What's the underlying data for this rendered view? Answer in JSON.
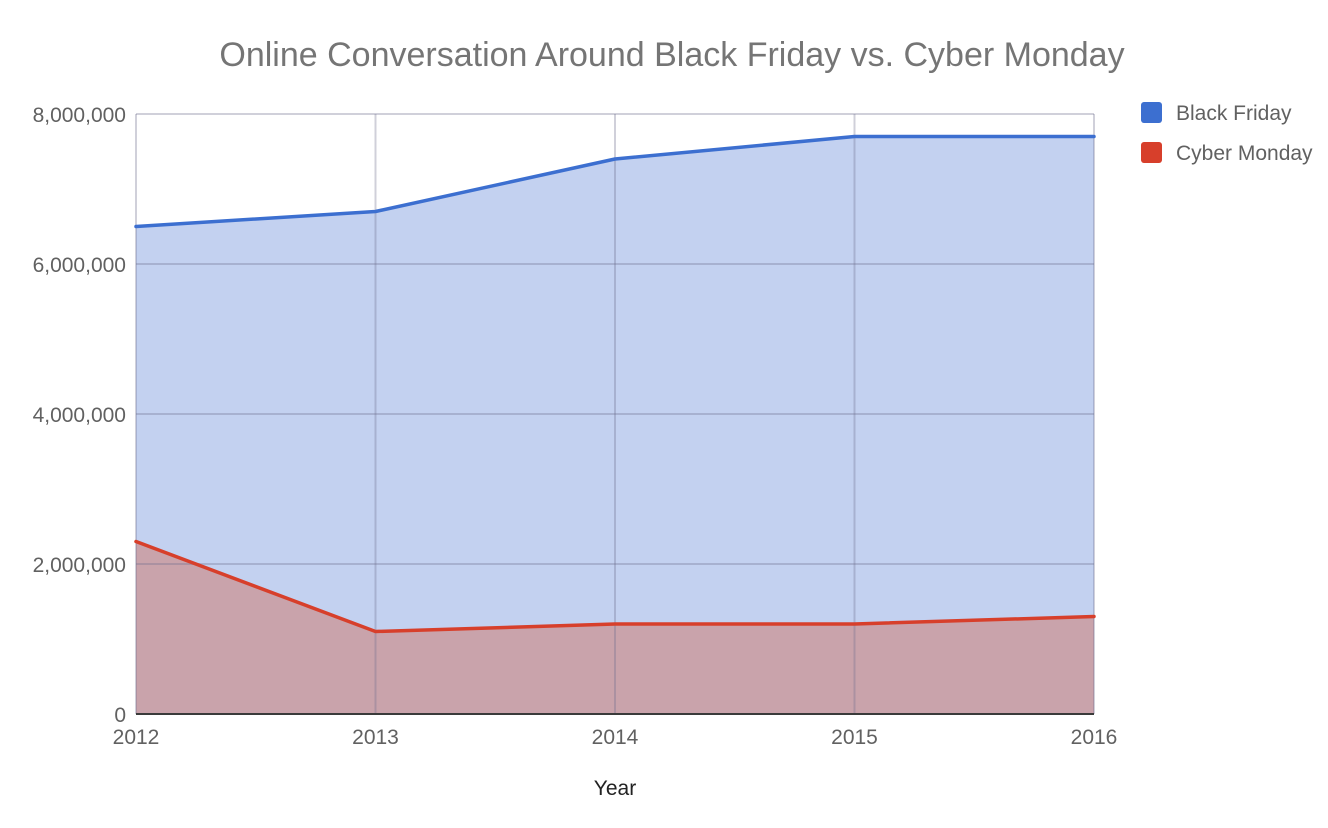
{
  "chart_data": {
    "type": "area",
    "title": "Online Conversation Around Black Friday vs. Cyber Monday",
    "xlabel": "Year",
    "ylabel": "",
    "categories": [
      "2012",
      "2013",
      "2014",
      "2015",
      "2016"
    ],
    "ylim": [
      0,
      8000000
    ],
    "y_ticks": [
      {
        "value": 0,
        "label": "0"
      },
      {
        "value": 2000000,
        "label": "2,000,000"
      },
      {
        "value": 4000000,
        "label": "4,000,000"
      },
      {
        "value": 6000000,
        "label": "6,000,000"
      },
      {
        "value": 8000000,
        "label": "8,000,000"
      }
    ],
    "grid": true,
    "stacked": false,
    "legend_position": "right",
    "series": [
      {
        "name": "Black Friday",
        "values": [
          6500000,
          6700000,
          7400000,
          7700000,
          7700000
        ],
        "line_color": "#3c6fd0",
        "fill_color": "#c3d1f0"
      },
      {
        "name": "Cyber Monday",
        "values": [
          2300000,
          1100000,
          1200000,
          1200000,
          1300000
        ],
        "line_color": "#d73f2b",
        "fill_color": "#c9a3ab"
      }
    ]
  }
}
